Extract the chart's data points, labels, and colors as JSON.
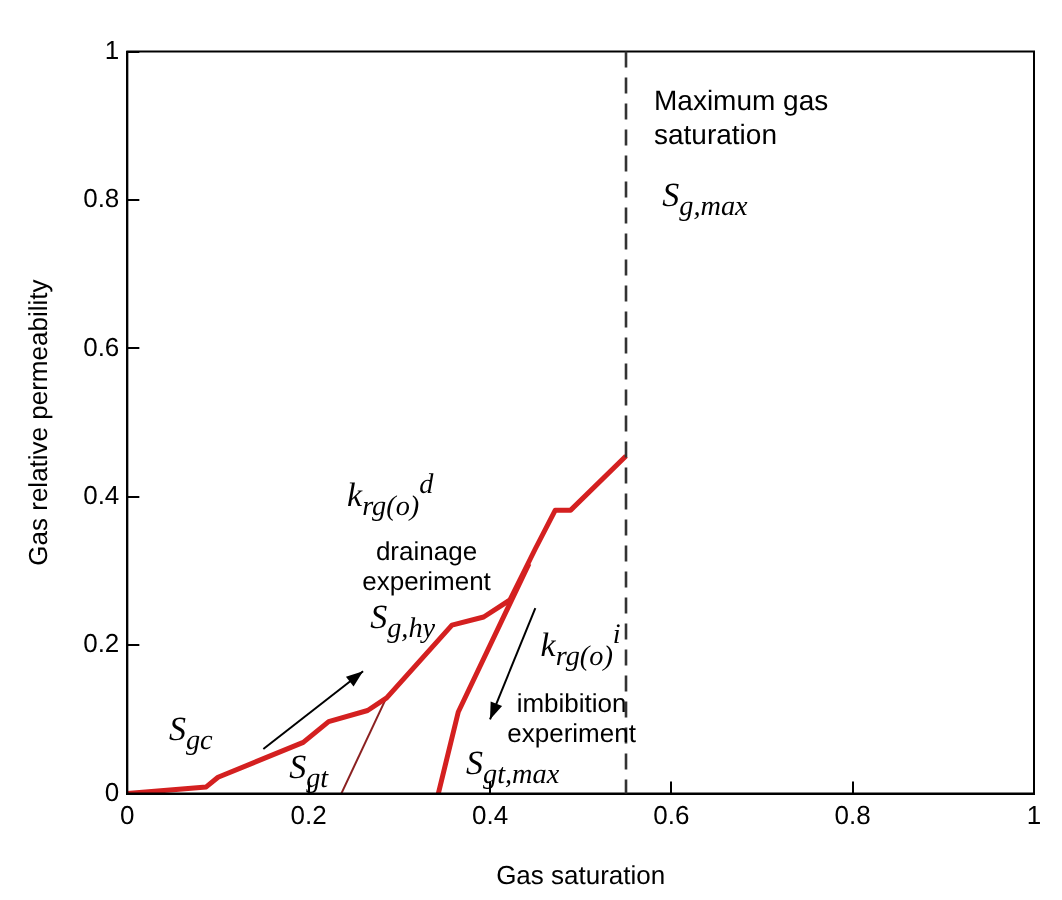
{
  "chart_data": {
    "type": "line",
    "xlabel": "Gas saturation",
    "ylabel": "Gas relative permeability",
    "xlim": [
      0,
      1
    ],
    "ylim": [
      0,
      1
    ],
    "xticks": [
      0,
      0.2,
      0.4,
      0.6,
      0.8,
      1
    ],
    "yticks": [
      0,
      0.2,
      0.4,
      0.6,
      0.8,
      1
    ],
    "grid": false,
    "legend": false,
    "marker": "none",
    "line_style": "solid",
    "series": [
      {
        "color": "#d42020",
        "x": [
          0,
          0.087,
          0.1,
          0.194,
          0.222,
          0.265,
          0.286,
          0.358,
          0.393,
          0.422,
          0.45,
          0.472,
          0.489,
          0.55
        ],
        "values": [
          0,
          0.009,
          0.022,
          0.069,
          0.097,
          0.112,
          0.129,
          0.227,
          0.238,
          0.261,
          0.33,
          0.382,
          0.382,
          0.455
        ]
      },
      {
        "color": "#d42020",
        "x": [
          0.343,
          0.365,
          0.443
        ],
        "values": [
          0,
          0.11,
          0.31
        ]
      },
      {
        "color": "#8b2020",
        "x": [
          0.236,
          0.286
        ],
        "values": [
          0,
          0.13
        ]
      }
    ],
    "ref_lines": [
      {
        "axis": "x",
        "value": 0.55,
        "label": "Maximum gas saturation",
        "color": "#333333",
        "line_style": "dashed"
      }
    ],
    "annotations": [
      "S$_{gc}$",
      "k$_{rg(o)}$$^{d}$",
      "drainage experiment",
      {
        "text": "S$_{g,hy}$",
        "x": 0.286,
        "y": 0.129
      },
      "S$_{gt}$",
      "k$_{rg(o)}$$^{i}$",
      "imbibition experiment",
      "S$_{gt,max}$",
      "S$_{g,max}$"
    ]
  }
}
